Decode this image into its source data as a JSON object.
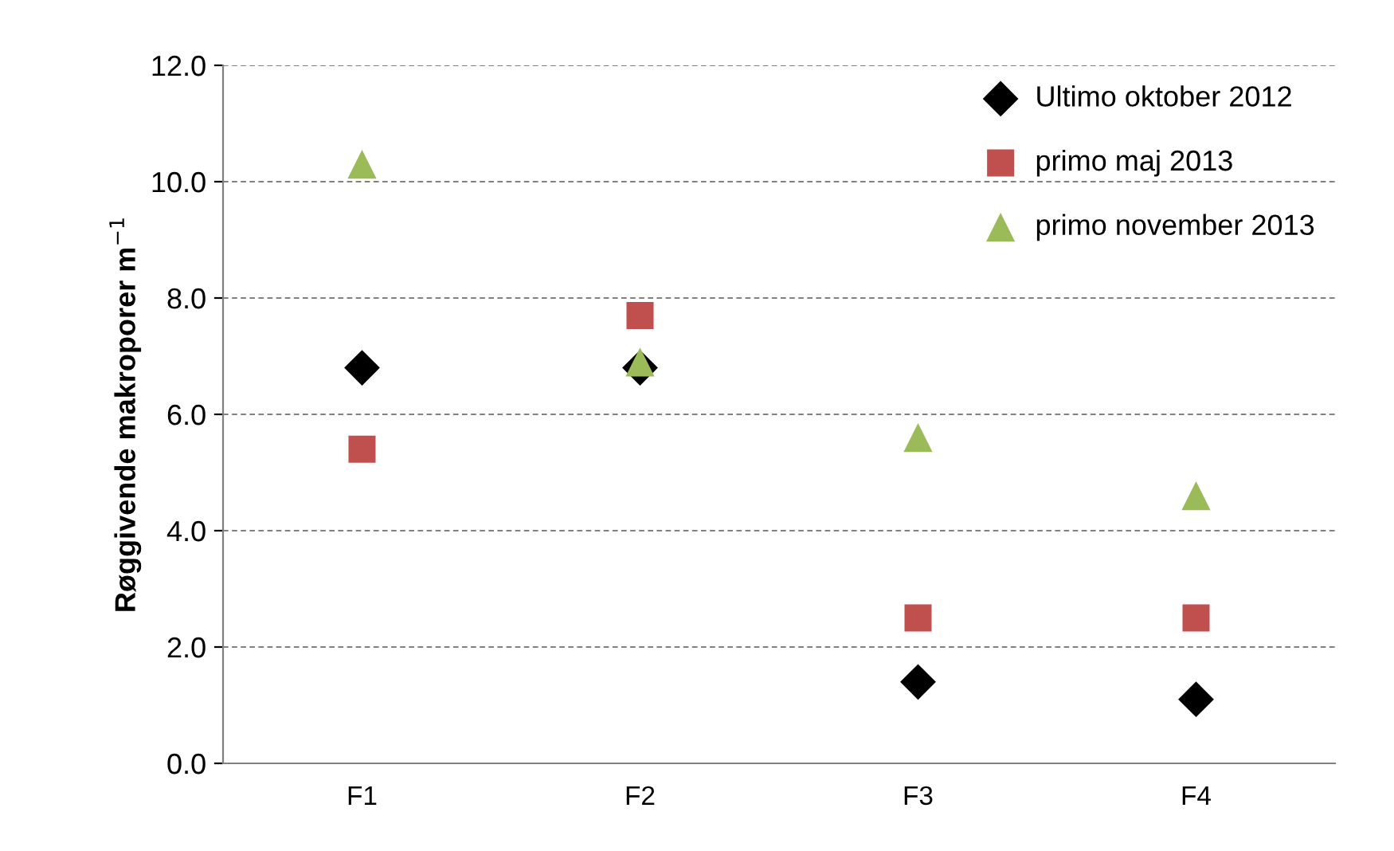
{
  "chart_data": {
    "type": "scatter",
    "ylabel": "Røggivende makroporer m$^{−1}$",
    "categories": [
      "F1",
      "F2",
      "F3",
      "F4"
    ],
    "series": [
      {
        "name": "Ultimo oktober 2012",
        "color": "#000000",
        "marker": "diamond",
        "values": [
          6.8,
          6.8,
          1.4,
          1.1
        ]
      },
      {
        "name": "primo maj 2013",
        "color": "#c0504d",
        "marker": "square",
        "values": [
          5.4,
          7.7,
          2.5,
          2.5
        ]
      },
      {
        "name": "primo november 2013",
        "color": "#9bbb59",
        "marker": "triangle",
        "values": [
          10.3,
          6.9,
          5.6,
          4.6
        ]
      }
    ],
    "ylim": [
      0,
      12
    ],
    "yticks": [
      {
        "value": 0,
        "label": "0.0"
      },
      {
        "value": 2,
        "label": "2.0"
      },
      {
        "value": 4,
        "label": "4.0"
      },
      {
        "value": 6,
        "label": "6.0"
      },
      {
        "value": 8,
        "label": "8.0"
      },
      {
        "value": 10,
        "label": "10.0"
      },
      {
        "value": 12,
        "label": "12.0"
      }
    ],
    "grid": "y",
    "legend": "top right"
  }
}
